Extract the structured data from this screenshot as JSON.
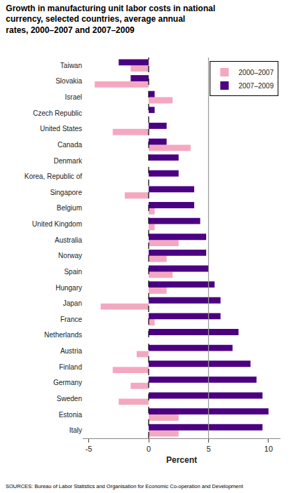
{
  "chart_data": {
    "type": "bar",
    "orientation": "horizontal",
    "title": "Growth in manufacturing unit labor costs in national\ncurrency, selected countries, average annual\nrates, 2000–2007 and 2007–2009",
    "xlabel": "Percent",
    "categories": [
      "Italy",
      "Estonia",
      "Sweden",
      "Germany",
      "Finland",
      "Austria",
      "Netherlands",
      "France",
      "Japan",
      "Hungary",
      "Spain",
      "Norway",
      "Australia",
      "United Kingdom",
      "Belgium",
      "Singapore",
      "Korea, Republic of",
      "Denmark",
      "Canada",
      "United States",
      "Czech Republic",
      "Israel",
      "Slovakia",
      "Taiwan"
    ],
    "series": [
      {
        "name": "2000–2007",
        "color": "#f4a8c0",
        "values": [
          2.5,
          2.5,
          -2.5,
          -1.5,
          -3.0,
          -1.0,
          0.0,
          0.5,
          -4.0,
          1.5,
          2.0,
          1.5,
          2.5,
          0.5,
          0.5,
          -2.0,
          0.0,
          0.0,
          3.5,
          -3.0,
          0.0,
          2.0,
          -4.5,
          -1.5
        ]
      },
      {
        "name": "2007–2009",
        "color": "#4b0082",
        "values": [
          9.5,
          10.0,
          9.5,
          9.0,
          8.5,
          7.0,
          7.5,
          6.0,
          6.0,
          5.5,
          5.0,
          4.8,
          4.8,
          4.3,
          3.8,
          3.8,
          2.5,
          2.5,
          1.5,
          1.5,
          0.5,
          0.5,
          -1.5,
          -2.5
        ]
      }
    ],
    "xlim": [
      -5.5,
      11.0
    ],
    "xticks": [
      -5,
      0,
      5,
      10
    ],
    "grid": false,
    "legend": "upper right",
    "reference_lines": [
      {
        "value": 0.0,
        "color": "#000000",
        "line_style": "dashed"
      },
      {
        "value": 5.0,
        "color": "#999999",
        "line_style": "solid"
      }
    ],
    "annotations": [
      "SOURCES: Bureau of Labor Statistics and Organisation for Economic Co-operation and Development"
    ]
  }
}
